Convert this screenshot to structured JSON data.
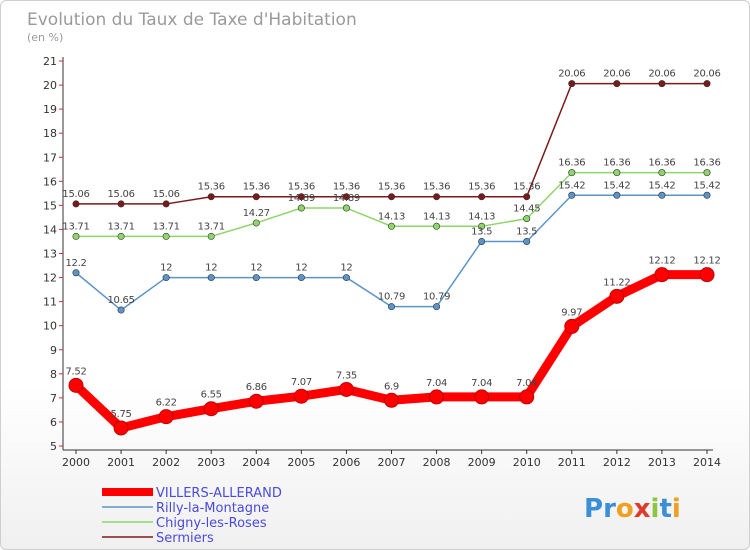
{
  "chart_data": {
    "type": "line",
    "title": "Evolution du Taux de Taxe d'Habitation",
    "subtitle": "(en %)",
    "ylim": [
      5,
      21
    ],
    "yticks": [
      "5",
      "6",
      "7",
      "8",
      "9",
      "10",
      "11",
      "12",
      "13",
      "14",
      "15",
      "16",
      "17",
      "18",
      "19",
      "20",
      "21"
    ],
    "categories": [
      "2000",
      "2001",
      "2002",
      "2003",
      "2004",
      "2005",
      "2006",
      "2007",
      "2008",
      "2009",
      "2010",
      "2011",
      "2012",
      "2013",
      "2014"
    ],
    "series": [
      {
        "name": "Sermiers",
        "color": "#7a1a1a",
        "values": [
          15.06,
          15.06,
          15.06,
          15.36,
          15.36,
          15.36,
          15.36,
          15.36,
          15.36,
          15.36,
          15.36,
          20.06,
          20.06,
          20.06,
          20.06
        ],
        "labels": [
          "15.06",
          "15.06",
          "15.06",
          "15.36",
          "15.36",
          "15.36",
          "15.36",
          "15.36",
          "15.36",
          "15.36",
          "15.36",
          "20.06",
          "20.06",
          "20.06",
          "20.06"
        ]
      },
      {
        "name": "Chigny-les-Roses",
        "color": "#8ed66a",
        "values": [
          13.71,
          13.71,
          13.71,
          13.71,
          14.27,
          14.89,
          14.89,
          14.13,
          14.13,
          14.13,
          14.45,
          16.36,
          16.36,
          16.36,
          16.36
        ],
        "labels": [
          "13.71",
          "13.71",
          "13.71",
          "13.71",
          "14.27",
          "14.89",
          "14.89",
          "14.13",
          "14.13",
          "14.13",
          "14.45",
          "16.36",
          "16.36",
          "16.36",
          "16.36"
        ]
      },
      {
        "name": "Rilly-la-Montagne",
        "color": "#5b95c8",
        "values": [
          12.2,
          10.65,
          12,
          12,
          12,
          12,
          12,
          10.79,
          10.79,
          13.5,
          13.5,
          15.42,
          15.42,
          15.42,
          15.42
        ],
        "labels": [
          "12.2",
          "10.65",
          "12",
          "12",
          "12",
          "12",
          "12",
          "10.79",
          "10.79",
          "13.5",
          "13.5",
          "15.42",
          "15.42",
          "15.42",
          "15.42"
        ]
      },
      {
        "name": "VILLERS-ALLERAND",
        "color": "#ff0000",
        "values": [
          7.52,
          5.75,
          6.22,
          6.55,
          6.86,
          7.07,
          7.35,
          6.9,
          7.04,
          7.04,
          7.04,
          9.97,
          11.22,
          12.12,
          12.12
        ],
        "labels": [
          "7.52",
          "5.75",
          "6.22",
          "6.55",
          "6.86",
          "7.07",
          "7.35",
          "6.9",
          "7.04",
          "7.04",
          "7.04",
          "9.97",
          "11.22",
          "12.12",
          "12.12"
        ]
      }
    ],
    "legend": [
      "VILLERS-ALLERAND",
      "Rilly-la-Montagne",
      "Chigny-les-Roses",
      "Sermiers"
    ],
    "legend_position": "bottom-left",
    "grid": false
  },
  "branding": {
    "logo_text": "Proxiti",
    "logo_letters": [
      "P",
      "r",
      "o",
      "x",
      "i",
      "t",
      "i"
    ],
    "logo_colors": [
      "#3a8fd6",
      "#3a8fd6",
      "#f0a020",
      "#e03a2a",
      "#8cc63f",
      "#3a8fd6",
      "#f0a020"
    ]
  }
}
